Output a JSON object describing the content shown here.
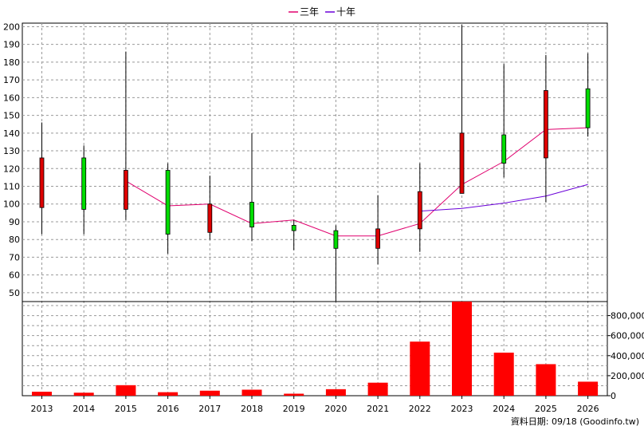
{
  "chart_data": {
    "type": "candlestick",
    "legend": [
      {
        "name": "三年",
        "color": "#e0006e"
      },
      {
        "name": "十年",
        "color": "#6a00d8"
      }
    ],
    "years": [
      "2013",
      "2014",
      "2015",
      "2016",
      "2017",
      "2018",
      "2019",
      "2020",
      "2021",
      "2022",
      "2023",
      "2024",
      "2025",
      "2026"
    ],
    "price_axis": {
      "ylim": [
        45,
        202
      ],
      "ticks": [
        50,
        60,
        70,
        80,
        90,
        100,
        110,
        120,
        130,
        140,
        150,
        160,
        170,
        180,
        190,
        200
      ]
    },
    "candles": [
      {
        "year": "2013",
        "open": 126,
        "close": 98,
        "high": 146,
        "low": 83
      },
      {
        "year": "2014",
        "open": 97,
        "close": 126,
        "high": 133,
        "low": 83
      },
      {
        "year": "2015",
        "open": 119,
        "close": 97,
        "high": 186,
        "low": 91
      },
      {
        "year": "2016",
        "open": 83,
        "close": 119,
        "high": 123,
        "low": 72
      },
      {
        "year": "2017",
        "open": 100,
        "close": 84,
        "high": 116,
        "low": 80
      },
      {
        "year": "2018",
        "open": 87,
        "close": 101,
        "high": 140,
        "low": 79
      },
      {
        "year": "2019",
        "open": 85,
        "close": 88,
        "high": 91,
        "low": 74
      },
      {
        "year": "2020",
        "open": 75,
        "close": 85,
        "high": 88,
        "low": 45
      },
      {
        "year": "2021",
        "open": 86,
        "close": 75,
        "high": 105,
        "low": 66
      },
      {
        "year": "2022",
        "open": 107,
        "close": 86,
        "high": 123,
        "low": 73
      },
      {
        "year": "2023",
        "open": 140,
        "close": 106,
        "high": 201,
        "low": 106
      },
      {
        "year": "2024",
        "open": 123,
        "close": 139,
        "high": 179,
        "low": 115
      },
      {
        "year": "2025",
        "open": 164,
        "close": 126,
        "high": 184,
        "low": 101
      },
      {
        "year": "2026",
        "open": 143,
        "close": 165,
        "high": 185,
        "low": 138
      }
    ],
    "series": [
      {
        "name": "三年",
        "color": "#e0006e",
        "x": [
          "2015",
          "2016",
          "2017",
          "2018",
          "2019",
          "2020",
          "2021",
          "2022",
          "2023",
          "2024",
          "2025",
          "2026"
        ],
        "values": [
          113,
          99,
          100,
          89,
          91,
          82,
          82,
          89,
          111,
          124,
          142,
          143
        ]
      },
      {
        "name": "十年",
        "color": "#6a00d8",
        "x": [
          "2022",
          "2023",
          "2024",
          "2025",
          "2026"
        ],
        "values": [
          96,
          97.5,
          100.5,
          104.5,
          111
        ]
      }
    ],
    "volume_axis": {
      "ylim": [
        0,
        940000
      ],
      "ticks": [
        0,
        200000,
        400000,
        600000,
        800000
      ],
      "tick_labels": [
        "0",
        "200,000",
        "400,000",
        "600,000",
        "800,000"
      ]
    },
    "volume": [
      40000,
      30000,
      105000,
      35000,
      50000,
      60000,
      20000,
      65000,
      130000,
      540000,
      940000,
      430000,
      315000,
      140000
    ],
    "colors": {
      "up": "#00dd00",
      "down": "#dd0000",
      "volume": "#ff0000",
      "grid": "#999999"
    },
    "credit": "資料日期: 09/18  (Goodinfo.tw)"
  }
}
